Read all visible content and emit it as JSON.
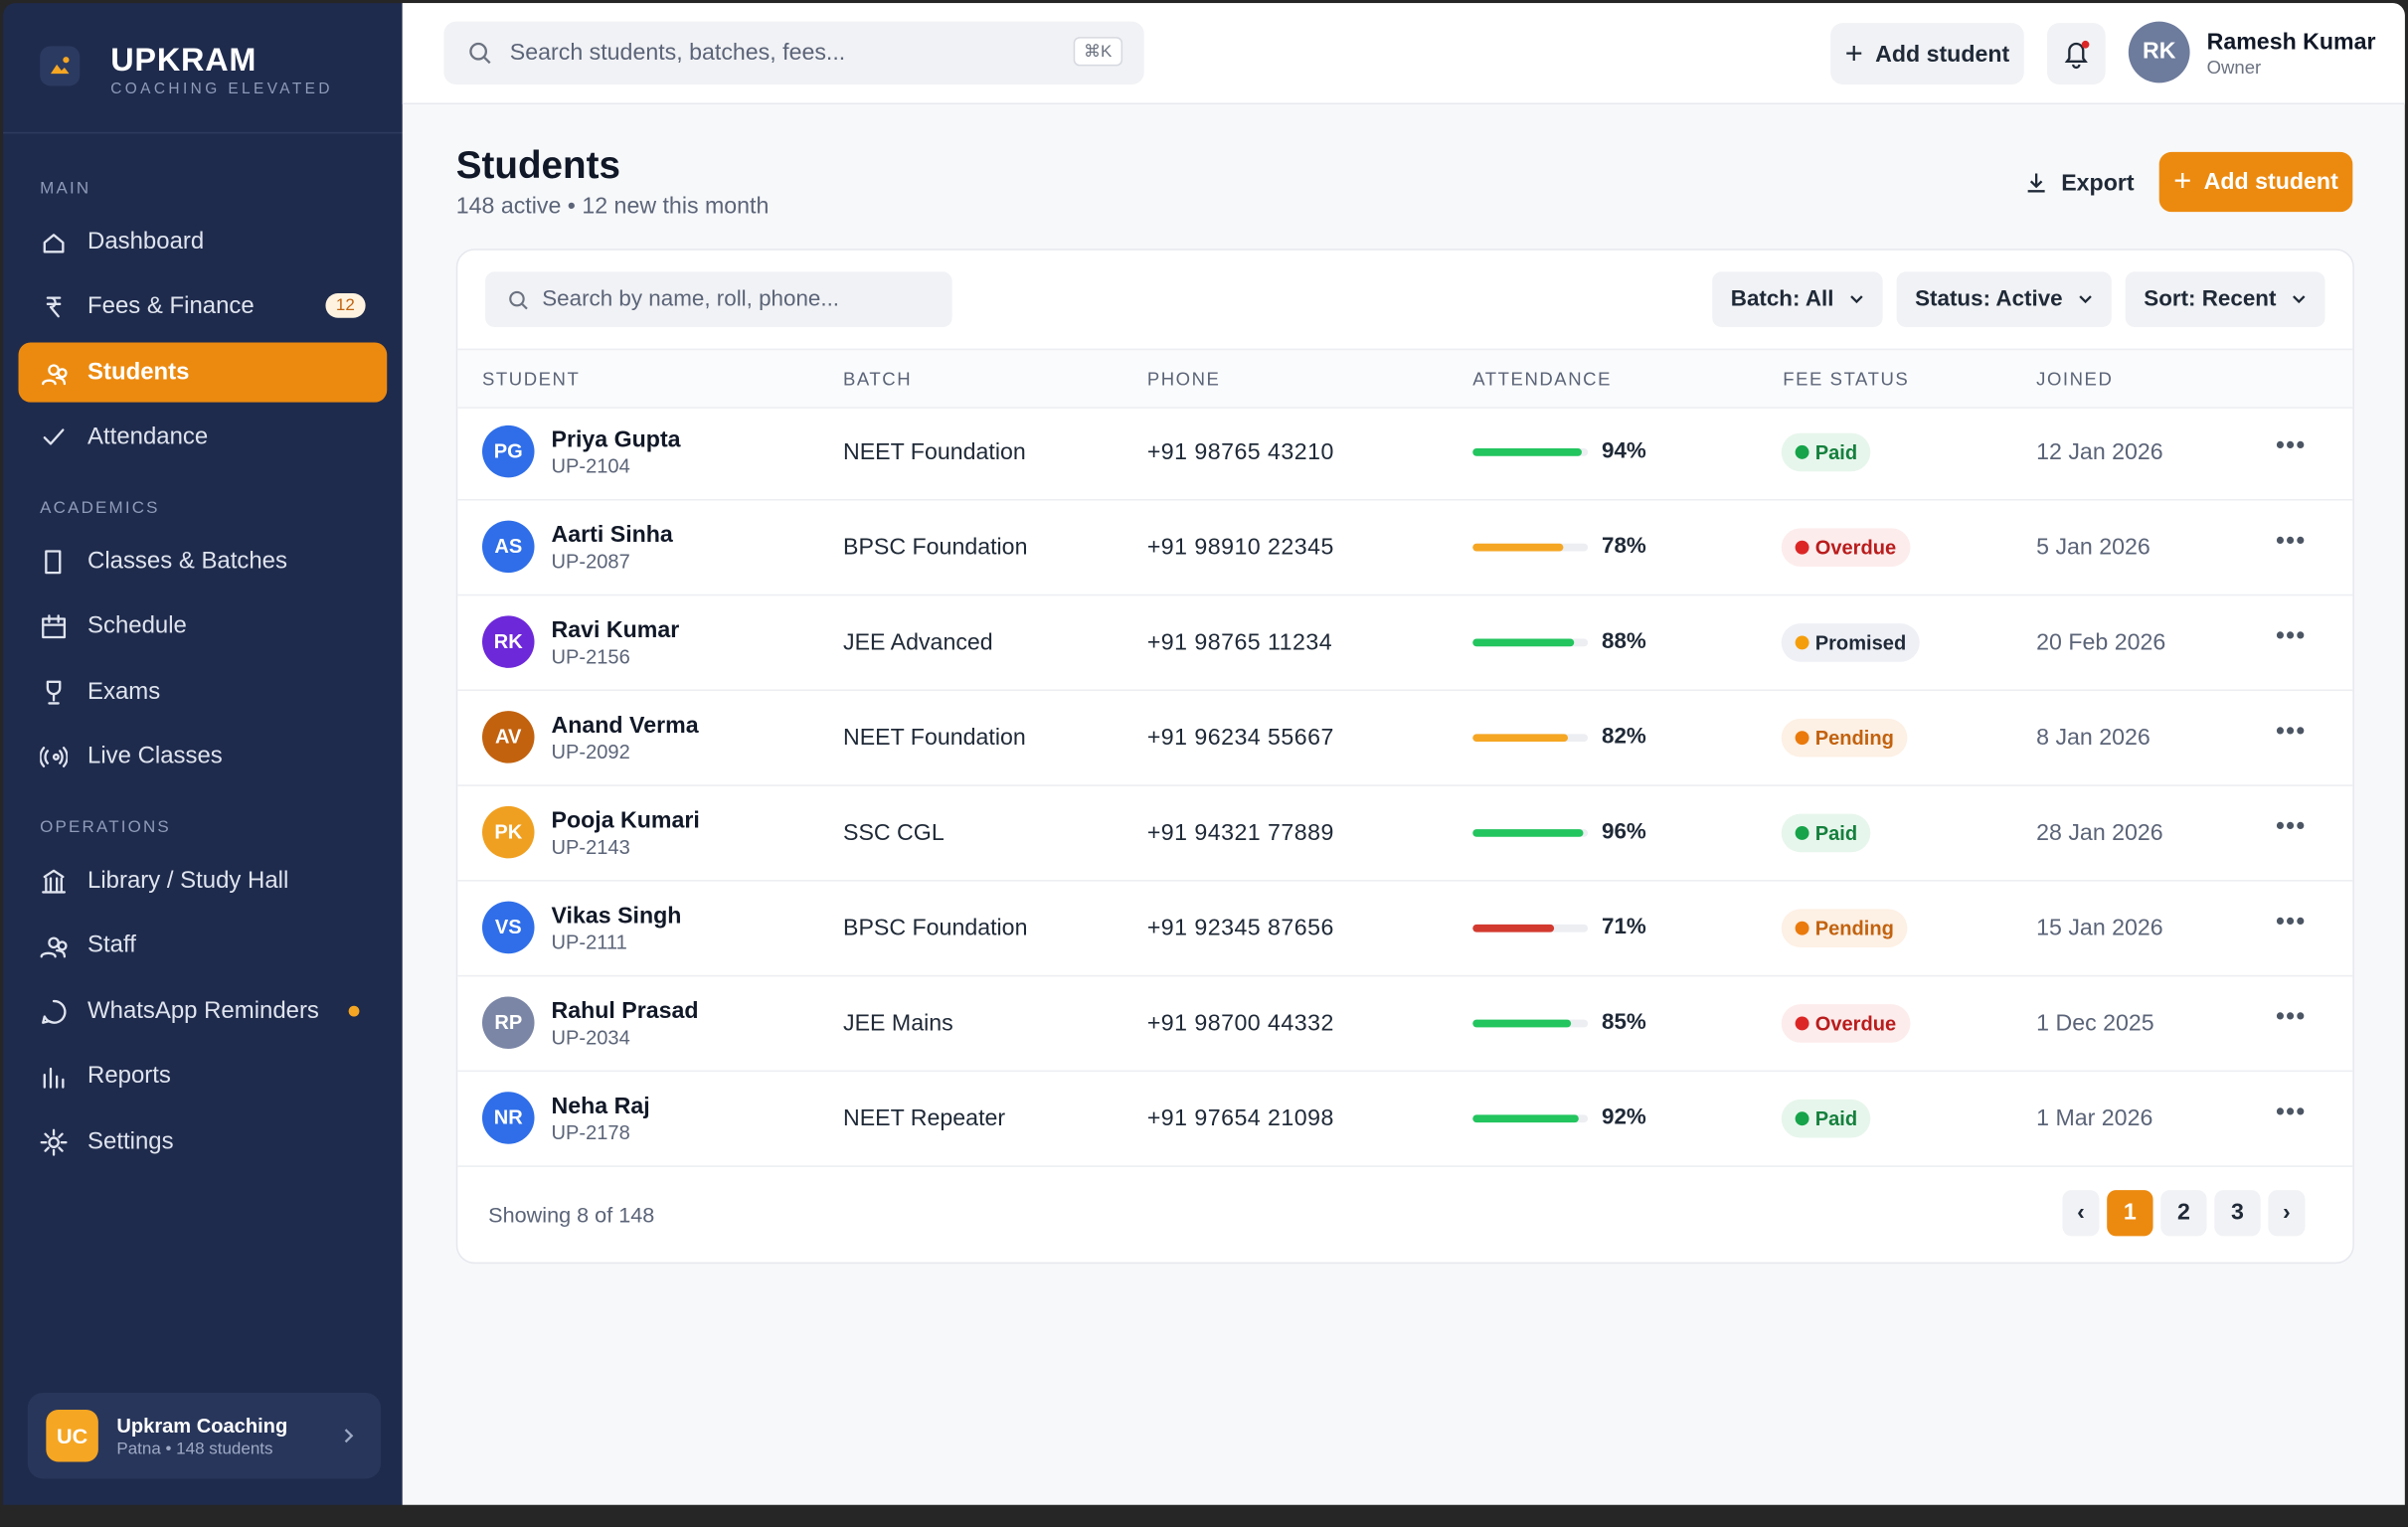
{
  "brand": {
    "name": "UPKRAM",
    "tagline": "COACHING ELEVATED"
  },
  "nav": [
    {
      "section": "MAIN",
      "items": [
        {
          "label": "Dashboard"
        },
        {
          "label": "Fees & Finance",
          "badge": 12
        },
        {
          "label": "Students",
          "active": true
        },
        {
          "label": "Attendance"
        }
      ]
    },
    {
      "section": "ACADEMICS",
      "items": [
        {
          "label": "Classes & Batches"
        },
        {
          "label": "Schedule"
        },
        {
          "label": "Exams"
        },
        {
          "label": "Live Classes"
        }
      ]
    },
    {
      "section": "OPERATIONS",
      "items": [
        {
          "label": "Library / Study Hall"
        },
        {
          "label": "Staff"
        },
        {
          "label": "WhatsApp Reminders",
          "dot": "#f5a623"
        },
        {
          "label": "Reports"
        },
        {
          "label": "Settings"
        }
      ]
    }
  ],
  "org": {
    "initials": "UC",
    "name": "Upkram Coaching",
    "detail": "Patna • 148 students"
  },
  "header": {
    "search_placeholder": "Search students, batches, fees...",
    "shortcut": "⌘K",
    "add_button": "Add student",
    "user": {
      "initials": "RK",
      "name": "Ramesh Kumar",
      "role": "Owner"
    }
  },
  "page": {
    "title": "Students",
    "subtitle": "148 active • 12 new this month",
    "export": "Export",
    "add_button": "Add student"
  },
  "table": {
    "search_placeholder": "Search by name, roll, phone...",
    "filters": [
      "Batch: All",
      "Status: Active",
      "Sort: Recent"
    ],
    "columns": [
      "STUDENT",
      "BATCH",
      "PHONE",
      "ATTENDANCE",
      "FEE STATUS",
      "JOINED"
    ],
    "rows": [
      {
        "initials": "PG",
        "avatar_color": "#2f6ee8",
        "name": "Priya Gupta",
        "roll": "UP-2104",
        "batch": "NEET Foundation",
        "phone": "+91 98765 43210",
        "attendance": {
          "value": 94,
          "label": "94%"
        },
        "bar_color": "#22c55e",
        "fee_status": {
          "label": "Paid",
          "color": "#15803d",
          "dot": "#16a34a",
          "bg": "#e7f6ec"
        },
        "joined": "12 Jan 2026"
      },
      {
        "initials": "AS",
        "avatar_color": "#2f6ee8",
        "name": "Aarti Sinha",
        "roll": "UP-2087",
        "batch": "BPSC Foundation",
        "phone": "+91 98910 22345",
        "attendance": {
          "value": 78,
          "label": "78%"
        },
        "bar_color": "#f5a623",
        "fee_status": {
          "label": "Overdue",
          "color": "#b91c1c",
          "dot": "#dc2626",
          "bg": "#fdecec"
        },
        "joined": "5 Jan 2026"
      },
      {
        "initials": "RK",
        "avatar_color": "#6d28d9",
        "name": "Ravi Kumar",
        "roll": "UP-2156",
        "batch": "JEE Advanced",
        "phone": "+91 98765 11234",
        "attendance": {
          "value": 88,
          "label": "88%"
        },
        "bar_color": "#22c55e",
        "fee_status": {
          "label": "Promised",
          "color": "#1f2937",
          "dot": "#f59e0b",
          "bg": "#eef0f5"
        },
        "joined": "20 Feb 2026"
      },
      {
        "initials": "AV",
        "avatar_color": "#c2620f",
        "name": "Anand Verma",
        "roll": "UP-2092",
        "batch": "NEET Foundation",
        "phone": "+91 96234 55667",
        "attendance": {
          "value": 82,
          "label": "82%"
        },
        "bar_color": "#f5a623",
        "fee_status": {
          "label": "Pending",
          "color": "#c2620f",
          "dot": "#ea7a0c",
          "bg": "#fdf0e4"
        },
        "joined": "8 Jan 2026"
      },
      {
        "initials": "PK",
        "avatar_color": "#f0a020",
        "name": "Pooja Kumari",
        "roll": "UP-2143",
        "batch": "SSC CGL",
        "phone": "+91 94321 77889",
        "attendance": {
          "value": 96,
          "label": "96%"
        },
        "bar_color": "#22c55e",
        "fee_status": {
          "label": "Paid",
          "color": "#15803d",
          "dot": "#16a34a",
          "bg": "#e7f6ec"
        },
        "joined": "28 Jan 2026"
      },
      {
        "initials": "VS",
        "avatar_color": "#2f6ee8",
        "name": "Vikas Singh",
        "roll": "UP-2111",
        "batch": "BPSC Foundation",
        "phone": "+91 92345 87656",
        "attendance": {
          "value": 71,
          "label": "71%"
        },
        "bar_color": "#d33a2f",
        "fee_status": {
          "label": "Pending",
          "color": "#c2620f",
          "dot": "#ea7a0c",
          "bg": "#fdf0e4"
        },
        "joined": "15 Jan 2026"
      },
      {
        "initials": "RP",
        "avatar_color": "#7b86a6",
        "name": "Rahul Prasad",
        "roll": "UP-2034",
        "batch": "JEE Mains",
        "phone": "+91 98700 44332",
        "attendance": {
          "value": 85,
          "label": "85%"
        },
        "bar_color": "#22c55e",
        "fee_status": {
          "label": "Overdue",
          "color": "#b91c1c",
          "dot": "#dc2626",
          "bg": "#fdecec"
        },
        "joined": "1 Dec 2025"
      },
      {
        "initials": "NR",
        "avatar_color": "#2f6ee8",
        "name": "Neha Raj",
        "roll": "UP-2178",
        "batch": "NEET Repeater",
        "phone": "+91 97654 21098",
        "attendance": {
          "value": 92,
          "label": "92%"
        },
        "bar_color": "#22c55e",
        "fee_status": {
          "label": "Paid",
          "color": "#15803d",
          "dot": "#16a34a",
          "bg": "#e7f6ec"
        },
        "joined": "1 Mar 2026"
      }
    ],
    "footer": "Showing 8 of 148",
    "pages": [
      1,
      2,
      3
    ],
    "current_page": 1
  }
}
